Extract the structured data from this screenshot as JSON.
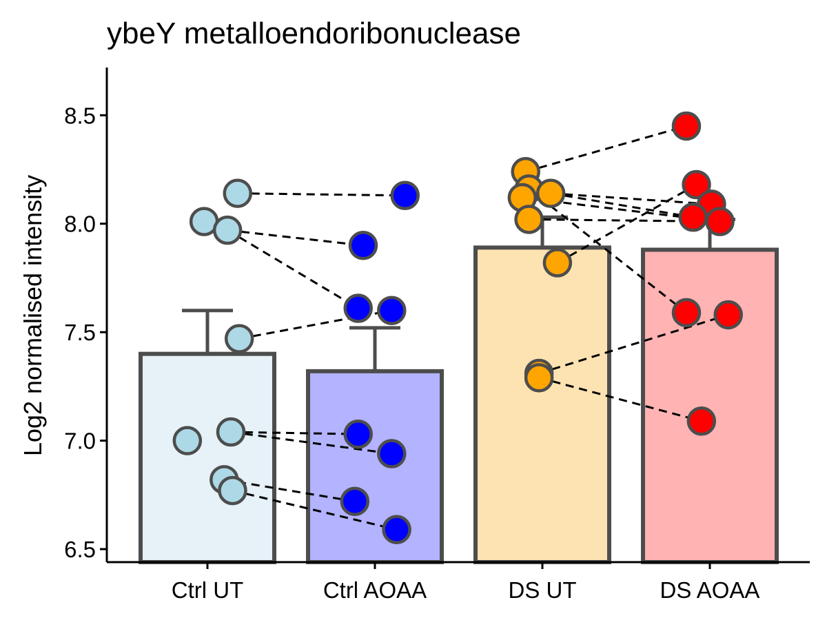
{
  "chart_data": {
    "type": "bar",
    "title": "ybeY metalloendoribonuclease",
    "xlabel": "",
    "ylabel": "Log2 normalised intensity",
    "ylim": [
      6.44,
      8.72
    ],
    "yticks": [
      6.5,
      7.0,
      7.5,
      8.0,
      8.5
    ],
    "ytick_labels": [
      "6.5",
      "7.0",
      "7.5",
      "8.0",
      "8.5"
    ],
    "categories": [
      "Ctrl UT",
      "Ctrl AOAA",
      "DS UT",
      "DS AOAA"
    ],
    "means": [
      7.4,
      7.32,
      7.89,
      7.88
    ],
    "error_upper": [
      7.6,
      7.52,
      8.03,
      8.02
    ],
    "bar_fill_colors": [
      "#e6f1f8",
      "#b3b3ff",
      "#fde3b1",
      "#ffb3b3"
    ],
    "point_colors": [
      "#add8e6",
      "#0000ff",
      "#ffa500",
      "#ff0000"
    ],
    "edge_color": "#4d4d4d",
    "points": [
      [
        {
          "offset": 0.18,
          "y": 8.14
        },
        {
          "offset": -0.02,
          "y": 8.01
        },
        {
          "offset": 0.12,
          "y": 7.97
        },
        {
          "offset": 0.19,
          "y": 7.47
        },
        {
          "offset": 0.14,
          "y": 7.04
        },
        {
          "offset": -0.12,
          "y": 7.0
        },
        {
          "offset": 0.1,
          "y": 6.82
        },
        {
          "offset": 0.15,
          "y": 6.77
        }
      ],
      [
        {
          "offset": 0.18,
          "y": 8.13
        },
        {
          "offset": -0.07,
          "y": 7.9
        },
        {
          "offset": -0.1,
          "y": 7.61
        },
        {
          "offset": 0.1,
          "y": 7.6
        },
        {
          "offset": -0.1,
          "y": 7.03
        },
        {
          "offset": 0.1,
          "y": 6.94
        },
        {
          "offset": -0.12,
          "y": 6.72
        },
        {
          "offset": 0.13,
          "y": 6.59
        }
      ],
      [
        {
          "offset": -0.1,
          "y": 8.24
        },
        {
          "offset": -0.08,
          "y": 8.16
        },
        {
          "offset": -0.12,
          "y": 8.12
        },
        {
          "offset": 0.05,
          "y": 8.14
        },
        {
          "offset": -0.08,
          "y": 8.02
        },
        {
          "offset": 0.09,
          "y": 7.82
        },
        {
          "offset": -0.02,
          "y": 7.31
        },
        {
          "offset": -0.02,
          "y": 7.29
        }
      ],
      [
        {
          "offset": -0.14,
          "y": 8.45
        },
        {
          "offset": -0.08,
          "y": 8.18
        },
        {
          "offset": -0.14,
          "y": 7.59
        },
        {
          "offset": 0.11,
          "y": 7.58
        },
        {
          "offset": 0.01,
          "y": 8.09
        },
        {
          "offset": -0.1,
          "y": 8.03
        },
        {
          "offset": 0.06,
          "y": 8.01
        },
        {
          "offset": -0.05,
          "y": 7.09
        }
      ]
    ],
    "pair_lines": [
      {
        "from": [
          0,
          0
        ],
        "to": [
          1,
          0
        ]
      },
      {
        "from": [
          0,
          2
        ],
        "to": [
          1,
          1
        ]
      },
      {
        "from": [
          0,
          2
        ],
        "to": [
          1,
          2
        ]
      },
      {
        "from": [
          0,
          3
        ],
        "to": [
          1,
          3
        ]
      },
      {
        "from": [
          0,
          4
        ],
        "to": [
          1,
          4
        ]
      },
      {
        "from": [
          0,
          4
        ],
        "to": [
          1,
          5
        ]
      },
      {
        "from": [
          0,
          6
        ],
        "to": [
          1,
          6
        ]
      },
      {
        "from": [
          0,
          7
        ],
        "to": [
          1,
          7
        ]
      },
      {
        "from": [
          2,
          0
        ],
        "to": [
          3,
          0
        ]
      },
      {
        "from": [
          2,
          3
        ],
        "to": [
          3,
          4
        ]
      },
      {
        "from": [
          2,
          3
        ],
        "to": [
          3,
          5
        ]
      },
      {
        "from": [
          2,
          2
        ],
        "to": [
          3,
          6
        ]
      },
      {
        "from": [
          2,
          4
        ],
        "to": [
          3,
          6
        ]
      },
      {
        "from": [
          2,
          1
        ],
        "to": [
          3,
          2
        ]
      },
      {
        "from": [
          2,
          5
        ],
        "to": [
          3,
          1
        ]
      },
      {
        "from": [
          2,
          6
        ],
        "to": [
          3,
          3
        ]
      },
      {
        "from": [
          2,
          7
        ],
        "to": [
          3,
          7
        ]
      }
    ]
  }
}
